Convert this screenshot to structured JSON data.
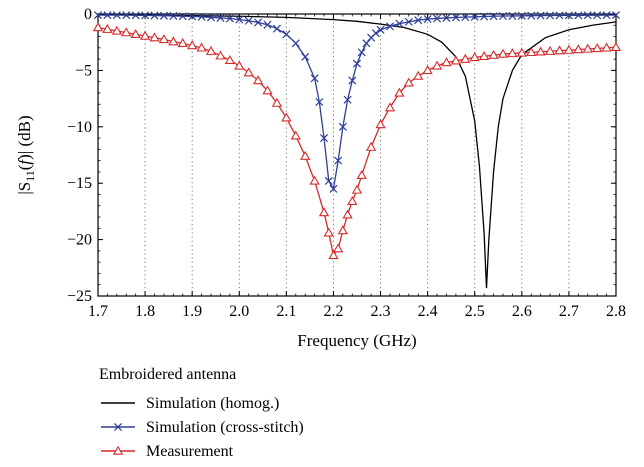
{
  "chart_data": {
    "type": "line",
    "xlabel": "Frequency (GHz)",
    "ylabel_parts": {
      "pre": "|S",
      "sub": "11",
      "mid": "(",
      "f": "f",
      "post": ")| (dB)"
    },
    "xlim": [
      1.7,
      2.8
    ],
    "ylim": [
      -25,
      0
    ],
    "xticks": [
      1.7,
      1.8,
      1.9,
      2.0,
      2.1,
      2.2,
      2.3,
      2.4,
      2.5,
      2.6,
      2.7,
      2.8
    ],
    "xtick_labels": [
      "1.7",
      "1.8",
      "1.9",
      "2.0",
      "2.1",
      "2.2",
      "2.3",
      "2.4",
      "2.5",
      "2.6",
      "2.7",
      "2.8"
    ],
    "yticks": [
      0,
      -5,
      -10,
      -15,
      -20,
      -25
    ],
    "ytick_labels": [
      "0",
      "−5",
      "−10",
      "−15",
      "−20",
      "−25"
    ],
    "grid": "dotted-vertical",
    "legend": {
      "title": "Embroidered antenna",
      "placement": "below"
    },
    "series": [
      {
        "name": "Simulation (homog.)",
        "color": "#000000",
        "marker": "none",
        "x": [
          1.7,
          1.8,
          1.9,
          2.0,
          2.1,
          2.2,
          2.25,
          2.3,
          2.35,
          2.4,
          2.43,
          2.46,
          2.48,
          2.5,
          2.51,
          2.52,
          2.525,
          2.53,
          2.54,
          2.55,
          2.56,
          2.58,
          2.6,
          2.65,
          2.7,
          2.75,
          2.8
        ],
        "y": [
          -0.05,
          -0.1,
          -0.15,
          -0.2,
          -0.3,
          -0.5,
          -0.65,
          -0.9,
          -1.2,
          -1.8,
          -2.5,
          -3.8,
          -5.5,
          -9.5,
          -13.5,
          -19.5,
          -24.3,
          -20.0,
          -14.0,
          -10.0,
          -7.5,
          -5.0,
          -3.6,
          -2.1,
          -1.4,
          -1.0,
          -0.7
        ]
      },
      {
        "name": "Simulation (cross-stitch)",
        "color": "#2e3d99",
        "marker": "x",
        "x": [
          1.7,
          1.72,
          1.74,
          1.76,
          1.78,
          1.8,
          1.82,
          1.84,
          1.86,
          1.88,
          1.9,
          1.92,
          1.94,
          1.96,
          1.98,
          2.0,
          2.02,
          2.04,
          2.06,
          2.08,
          2.1,
          2.12,
          2.14,
          2.16,
          2.17,
          2.18,
          2.19,
          2.2,
          2.21,
          2.22,
          2.23,
          2.24,
          2.25,
          2.26,
          2.27,
          2.28,
          2.29,
          2.3,
          2.32,
          2.34,
          2.36,
          2.38,
          2.4,
          2.42,
          2.44,
          2.46,
          2.48,
          2.5,
          2.52,
          2.54,
          2.56,
          2.58,
          2.6,
          2.62,
          2.64,
          2.66,
          2.68,
          2.7,
          2.72,
          2.74,
          2.76,
          2.78,
          2.8
        ],
        "y": [
          -0.1,
          -0.1,
          -0.1,
          -0.1,
          -0.12,
          -0.12,
          -0.14,
          -0.15,
          -0.17,
          -0.2,
          -0.22,
          -0.25,
          -0.3,
          -0.35,
          -0.4,
          -0.5,
          -0.6,
          -0.75,
          -0.95,
          -1.3,
          -1.8,
          -2.6,
          -3.8,
          -5.7,
          -7.8,
          -11.0,
          -14.8,
          -15.5,
          -13.0,
          -10.0,
          -7.6,
          -5.9,
          -4.4,
          -3.4,
          -2.6,
          -2.1,
          -1.7,
          -1.4,
          -1.1,
          -0.85,
          -0.7,
          -0.55,
          -0.45,
          -0.4,
          -0.35,
          -0.3,
          -0.28,
          -0.25,
          -0.22,
          -0.2,
          -0.18,
          -0.17,
          -0.16,
          -0.15,
          -0.14,
          -0.13,
          -0.13,
          -0.12,
          -0.12,
          -0.11,
          -0.11,
          -0.1,
          -0.1
        ]
      },
      {
        "name": "Measurement",
        "color": "#d42a2a",
        "marker": "triangle",
        "x": [
          1.7,
          1.72,
          1.74,
          1.76,
          1.78,
          1.8,
          1.82,
          1.84,
          1.86,
          1.88,
          1.9,
          1.92,
          1.94,
          1.96,
          1.98,
          2.0,
          2.02,
          2.04,
          2.06,
          2.08,
          2.1,
          2.12,
          2.14,
          2.16,
          2.18,
          2.19,
          2.2,
          2.21,
          2.22,
          2.23,
          2.24,
          2.25,
          2.26,
          2.28,
          2.3,
          2.32,
          2.34,
          2.36,
          2.38,
          2.4,
          2.42,
          2.44,
          2.46,
          2.48,
          2.5,
          2.52,
          2.54,
          2.56,
          2.58,
          2.6,
          2.62,
          2.64,
          2.66,
          2.68,
          2.7,
          2.72,
          2.74,
          2.76,
          2.78,
          2.8
        ],
        "y": [
          -1.2,
          -1.35,
          -1.5,
          -1.65,
          -1.8,
          -1.95,
          -2.1,
          -2.25,
          -2.45,
          -2.6,
          -2.8,
          -3.0,
          -3.3,
          -3.7,
          -4.1,
          -4.6,
          -5.2,
          -5.9,
          -6.8,
          -7.9,
          -9.2,
          -10.8,
          -12.6,
          -14.8,
          -17.6,
          -19.4,
          -21.4,
          -20.8,
          -19.2,
          -17.8,
          -16.6,
          -15.6,
          -14.3,
          -11.8,
          -9.8,
          -8.3,
          -7.0,
          -6.1,
          -5.5,
          -5.0,
          -4.6,
          -4.3,
          -4.15,
          -4.0,
          -3.85,
          -3.75,
          -3.65,
          -3.55,
          -3.5,
          -3.45,
          -3.4,
          -3.35,
          -3.3,
          -3.25,
          -3.2,
          -3.15,
          -3.1,
          -3.05,
          -3.0,
          -2.95
        ]
      }
    ]
  }
}
